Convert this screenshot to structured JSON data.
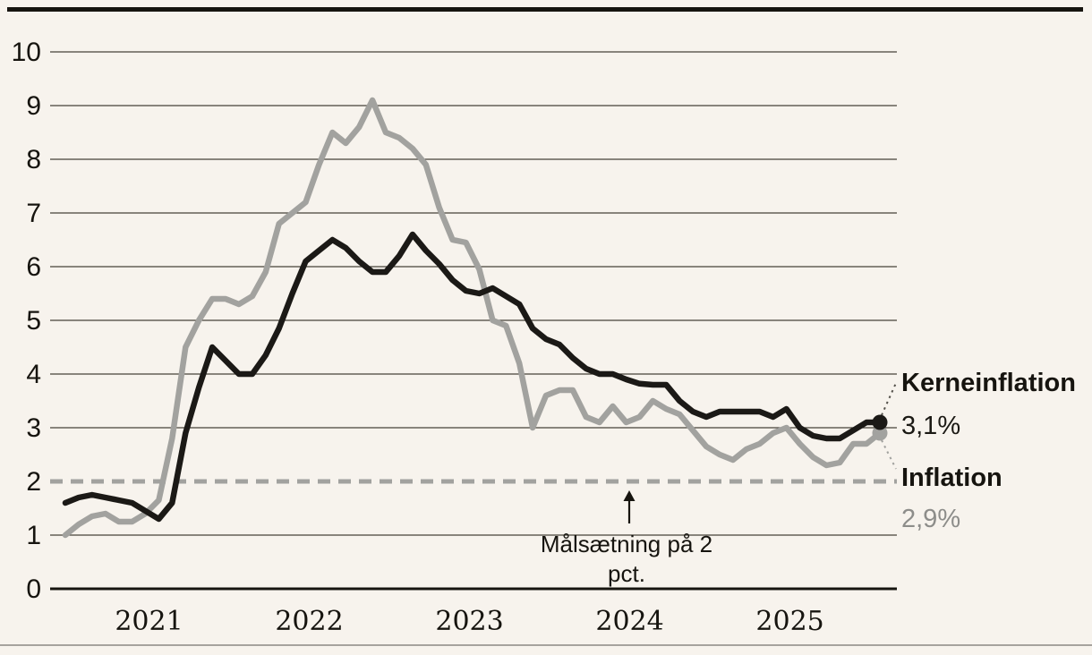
{
  "page": {
    "background": "#f7f3ed"
  },
  "chart_data": {
    "type": "line",
    "title": "",
    "x_frequency": "monthly",
    "x_range": [
      "2020-07",
      "2025-08"
    ],
    "x_tick_labels": [
      "2021",
      "2022",
      "2023",
      "2024",
      "2025"
    ],
    "y_ticks": [
      0,
      1,
      2,
      3,
      4,
      5,
      6,
      7,
      8,
      9,
      10
    ],
    "ylim": [
      0,
      10
    ],
    "grid": "horizontal",
    "legend_position": "right-end-labels",
    "series": [
      {
        "name": "Kerneinflation",
        "color": "#1b1916",
        "end_label": "Kerneinflation",
        "end_value_label": "3,1%",
        "end_value": 3.1,
        "values": [
          1.6,
          1.7,
          1.75,
          1.7,
          1.65,
          1.6,
          1.45,
          1.3,
          1.6,
          2.9,
          3.75,
          4.5,
          4.25,
          4.0,
          4.0,
          4.35,
          4.85,
          5.5,
          6.1,
          6.3,
          6.5,
          6.35,
          6.1,
          5.9,
          5.9,
          6.2,
          6.6,
          6.3,
          6.05,
          5.75,
          5.55,
          5.5,
          5.6,
          5.45,
          5.3,
          4.85,
          4.65,
          4.55,
          4.3,
          4.1,
          4.0,
          4.0,
          3.9,
          3.82,
          3.8,
          3.8,
          3.5,
          3.3,
          3.2,
          3.3,
          3.3,
          3.3,
          3.3,
          3.2,
          3.35,
          3.0,
          2.85,
          2.8,
          2.8,
          2.95,
          3.1,
          3.1
        ]
      },
      {
        "name": "Inflation",
        "color": "#a2a29f",
        "end_label": "Inflation",
        "end_value_label": "2,9%",
        "end_value": 2.9,
        "values": [
          1.0,
          1.2,
          1.35,
          1.4,
          1.25,
          1.25,
          1.4,
          1.65,
          2.8,
          4.5,
          5.0,
          5.4,
          5.4,
          5.3,
          5.45,
          5.9,
          6.8,
          7.0,
          7.2,
          7.9,
          8.5,
          8.3,
          8.6,
          9.1,
          8.5,
          8.4,
          8.2,
          7.9,
          7.1,
          6.5,
          6.45,
          5.95,
          5.0,
          4.9,
          4.2,
          3.0,
          3.6,
          3.7,
          3.7,
          3.2,
          3.1,
          3.4,
          3.1,
          3.2,
          3.5,
          3.35,
          3.25,
          2.95,
          2.65,
          2.5,
          2.4,
          2.6,
          2.7,
          2.9,
          3.0,
          2.7,
          2.45,
          2.3,
          2.35,
          2.7,
          2.7,
          2.9
        ]
      }
    ],
    "reference_line": {
      "value": 2,
      "style": "dashed",
      "color": "#a2a29f",
      "annotation": "Målsætning på 2 pct."
    }
  },
  "annotation": {
    "line1": "Målsætning på 2",
    "line2": "pct."
  },
  "end_labels": {
    "kerneinflation": "Kerneinflation",
    "kerneinflation_value": "3,1%",
    "inflation": "Inflation",
    "inflation_value": "2,9%"
  },
  "colors": {
    "background": "#f7f3ed",
    "gridline": "#454138",
    "axis": "#16140f",
    "text_dark": "#16140f",
    "text_gray": "#8d8d8a",
    "top_bar": "#16140f",
    "bottom_rule": "#a6a39e"
  }
}
